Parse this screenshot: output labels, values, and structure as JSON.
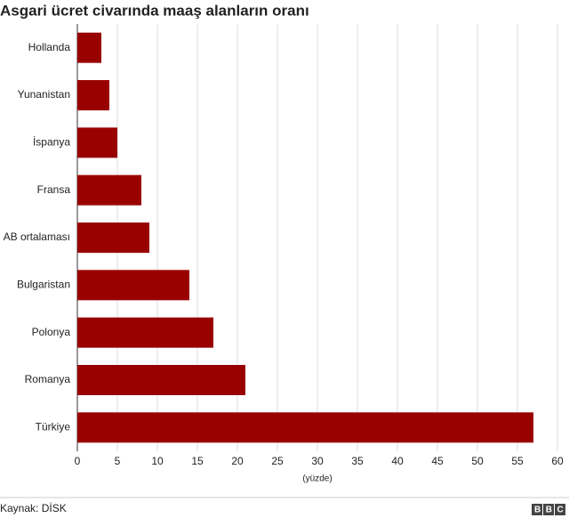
{
  "chart_data": {
    "type": "bar",
    "orientation": "horizontal",
    "title": "Asgari ücret civarında maaş alanların oranı",
    "categories": [
      "Hollanda",
      "Yunanistan",
      "İspanya",
      "Fransa",
      "AB ortalaması",
      "Bulgaristan",
      "Polonya",
      "Romanya",
      "Türkiye"
    ],
    "values": [
      3,
      4,
      5,
      8,
      9,
      14,
      17,
      21,
      57
    ],
    "color": "#990000",
    "xlabel": "(yüzde)",
    "xlim": [
      0,
      60
    ],
    "xticks": [
      0,
      5,
      10,
      15,
      20,
      25,
      30,
      35,
      40,
      45,
      50,
      55,
      60
    ],
    "grid": true,
    "source": "Kaynak: DİSK",
    "logo": "BBC"
  }
}
